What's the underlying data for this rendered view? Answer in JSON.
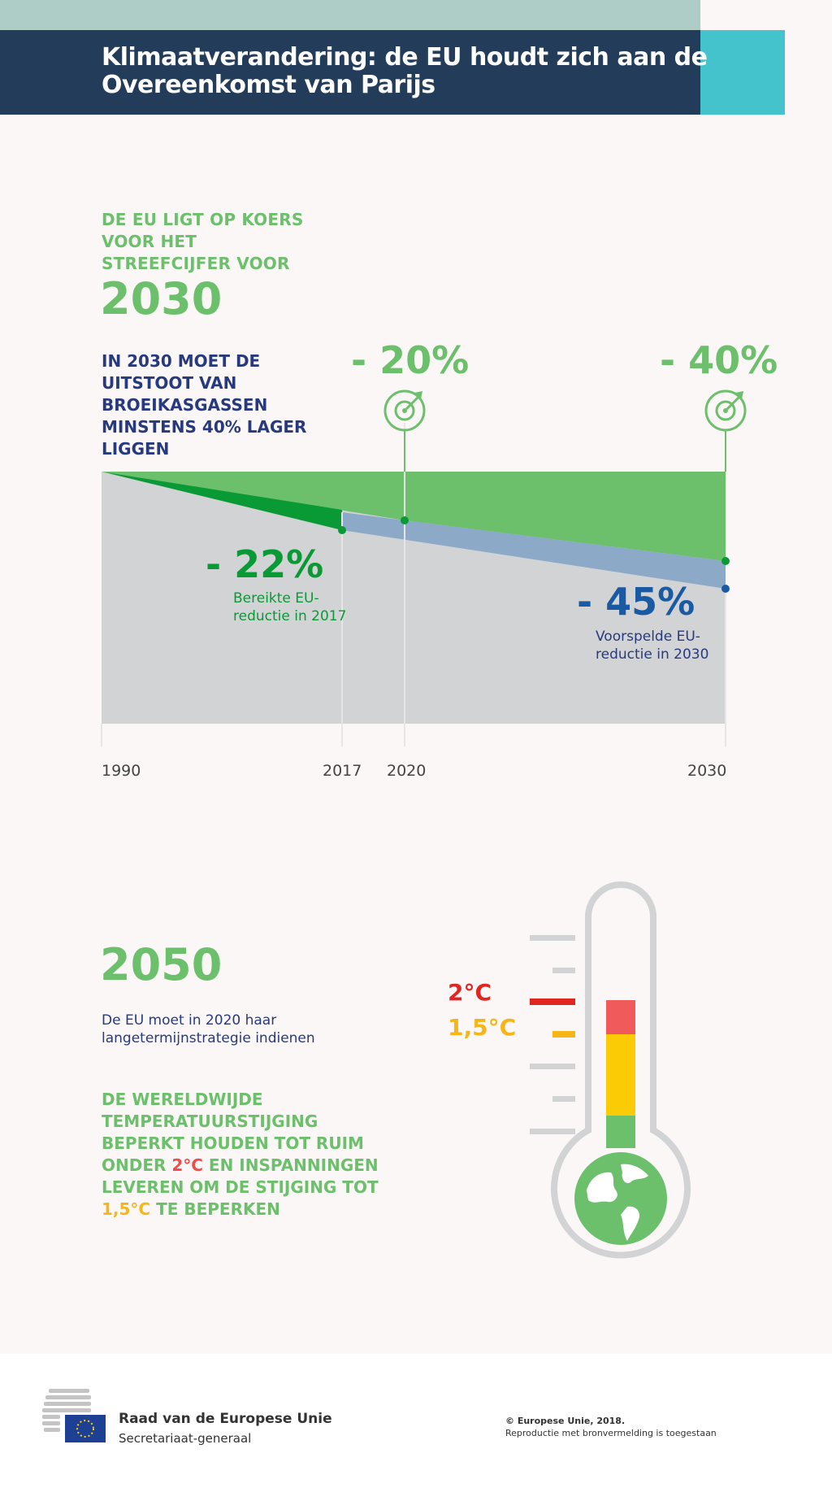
{
  "header": {
    "title_line1": "Klimaatverandering: de EU houdt zich aan de",
    "title_line2": "Overeenkomst van Parijs"
  },
  "section1": {
    "track_lines": [
      "DE EU LIGT OP KOERS",
      "VOOR HET",
      "STREEFCIJFER VOOR"
    ],
    "year": "2030",
    "target_lines": [
      "IN 2030 MOET DE",
      "UITSTOOT VAN",
      "BROEIKASGASSEN",
      "MINSTENS 40% LAGER",
      "LIGGEN"
    ]
  },
  "chart_data": {
    "type": "area",
    "x_labels": [
      "1990",
      "2017",
      "2020",
      "2030"
    ],
    "series": [
      {
        "name": "",
        "points": [
          {
            "x": 1990,
            "y": 0
          },
          {
            "x": 2020,
            "y": -20
          },
          {
            "x": 2030,
            "y": -40
          }
        ],
        "color": "#6cc06c"
      },
      {
        "name": "",
        "points": [
          {
            "x": 1990,
            "y": 0
          },
          {
            "x": 2017,
            "y": -22
          }
        ],
        "color": "#0a9a35"
      },
      {
        "name": "",
        "points": [
          {
            "x": 2017,
            "y": -22
          },
          {
            "x": 2030,
            "y": -45
          }
        ],
        "color": "#8ca9c8"
      }
    ],
    "targets": [
      {
        "year": "2020",
        "label": "- 20%"
      },
      {
        "year": "2030",
        "label": "- 40%"
      }
    ],
    "annotations": [
      {
        "value": "- 22%",
        "text_lines": [
          "Bereikte EU-",
          "reductie in 2017"
        ]
      },
      {
        "value": "- 45%",
        "text_lines": [
          "Voorspelde EU-",
          "reductie in 2030"
        ]
      }
    ],
    "colors": {
      "background_area": "#d1d3d5",
      "target_area": "#6cc06c",
      "achieved": "#0a9a35",
      "forecast": "#8ca9c8",
      "forecast_point": "#1a5aa3"
    }
  },
  "section2": {
    "year": "2050",
    "strategy_lines": [
      "De EU moet in 2020 haar",
      "langetermijnstrategie indienen"
    ],
    "global_parts": {
      "l1": "DE WERELDWIJDE",
      "l2": "TEMPERATUURSTIJGING",
      "l3": "BEPERKT HOUDEN TOT RUIM",
      "l4a": "ONDER ",
      "l4b": "2°C",
      "l4c": " EN INSPANNINGEN",
      "l5": "LEVEREN OM DE STIJGING TOT",
      "l6a": "1,5°C",
      "l6b": " TE BEPERKEN"
    },
    "thermometer": {
      "label_2": "2°C",
      "label_15": "1,5°C",
      "colors": {
        "red": "#f05a5a",
        "yellow": "#fbcb06",
        "green": "#6cc06c",
        "frame": "#d1d3d5"
      }
    }
  },
  "footer": {
    "council_name": "Raad van de Europese Unie",
    "council_sub": "Secretariaat-generaal",
    "copyright": "© Europese Unie, 2018.",
    "reproduction": "Reproductie met bronvermelding is toegestaan"
  }
}
